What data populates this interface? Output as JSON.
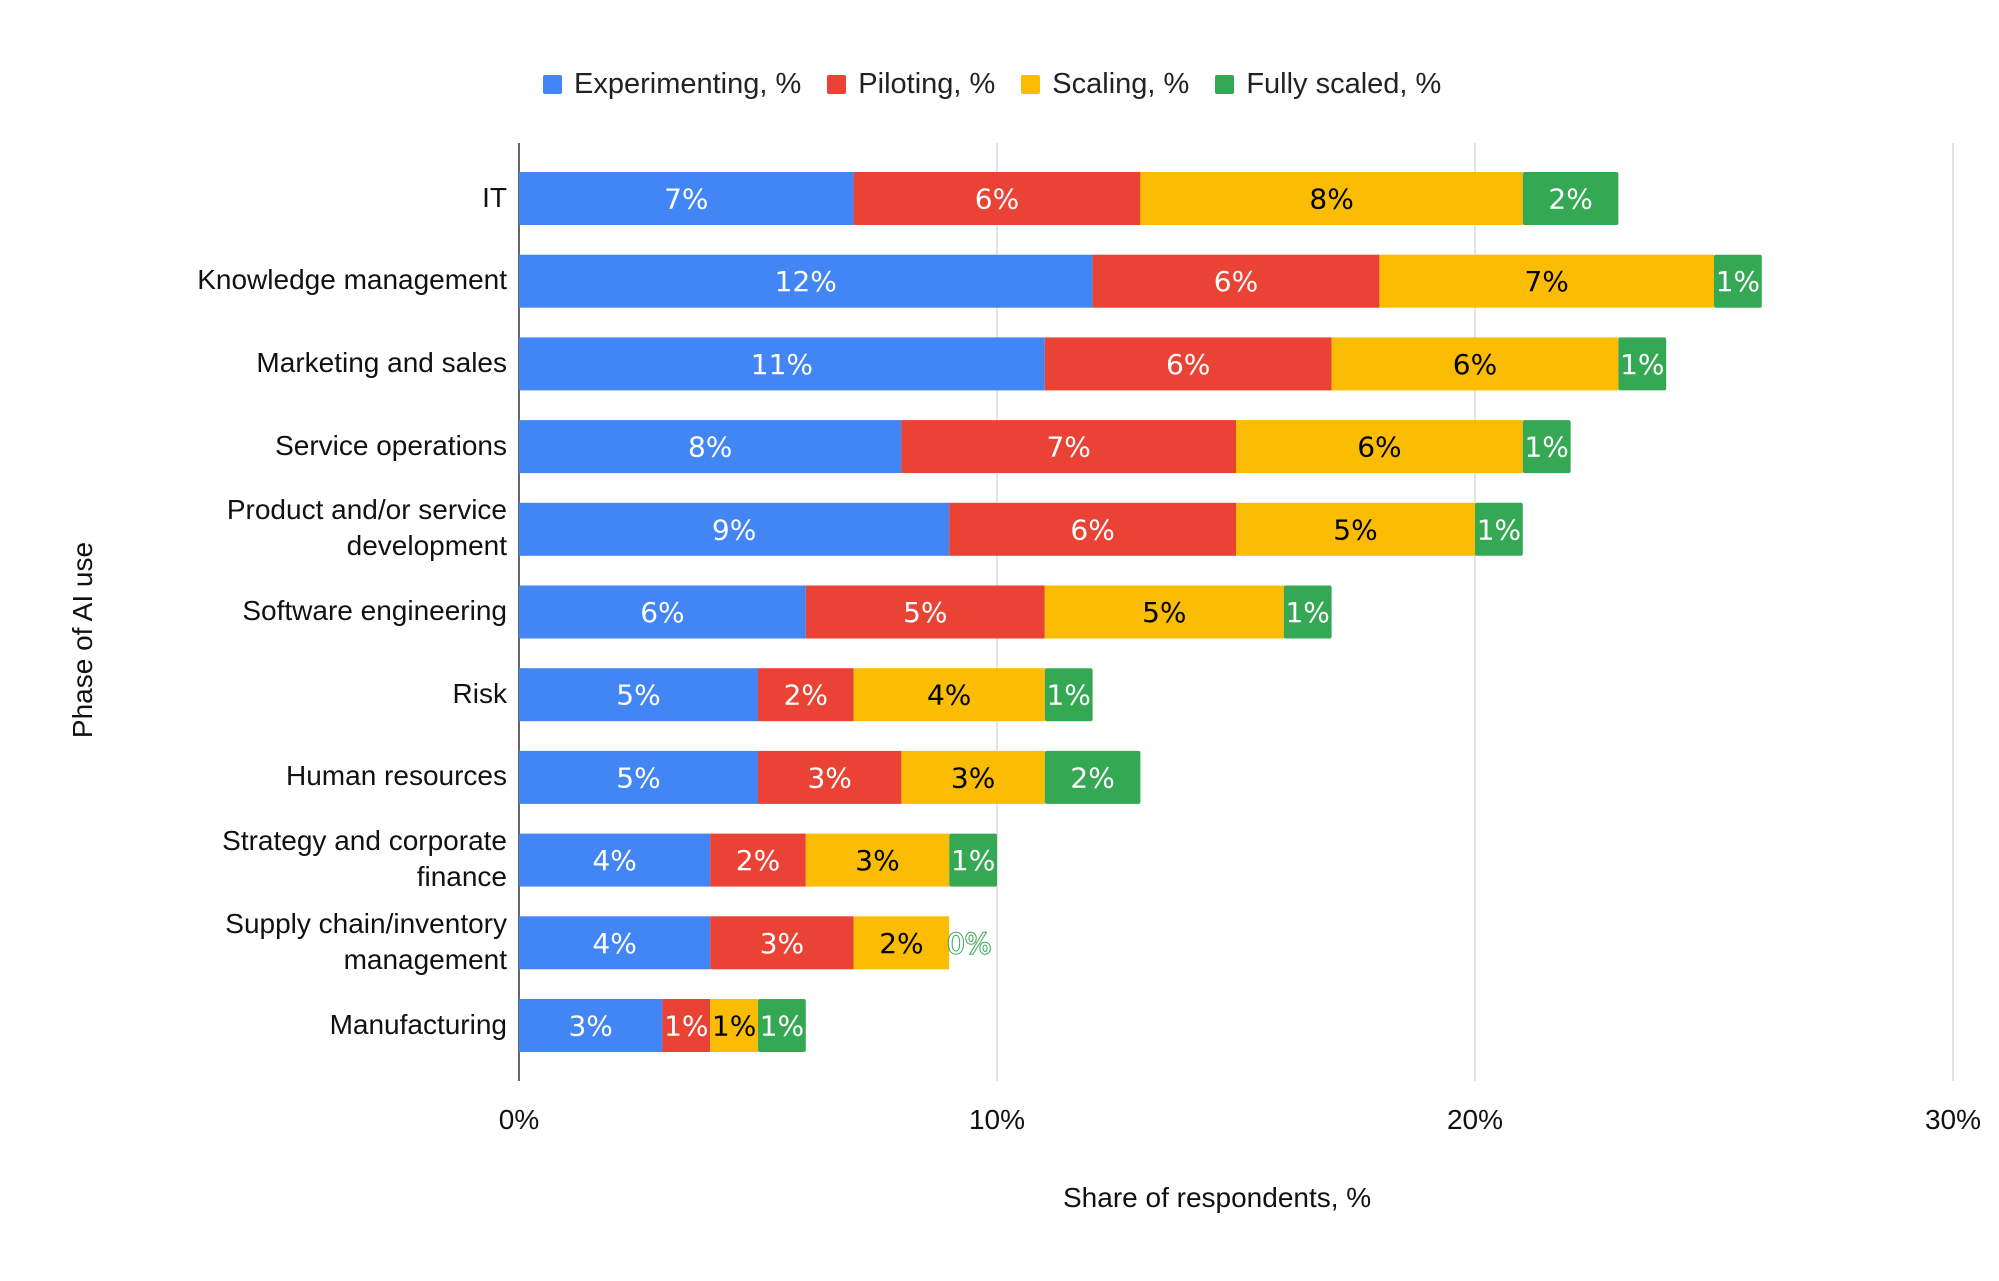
{
  "chart_data": {
    "type": "bar",
    "orientation": "horizontal",
    "stacked": true,
    "title": "",
    "xlabel": "Share of respondents, %",
    "ylabel": "Phase of AI use",
    "xlim": [
      0,
      30
    ],
    "x_ticks": [
      0,
      10,
      20,
      30
    ],
    "x_tick_labels": [
      "0%",
      "10%",
      "20%",
      "30%"
    ],
    "grid": true,
    "legend_position": "top",
    "categories": [
      "IT",
      "Knowledge management",
      "Marketing and sales",
      "Service operations",
      "Product and/or service development",
      "Software engineering",
      "Risk",
      "Human resources",
      "Strategy and corporate finance",
      "Supply chain/inventory management",
      "Manufacturing"
    ],
    "category_lines": [
      [
        "IT"
      ],
      [
        "Knowledge management"
      ],
      [
        "Marketing and sales"
      ],
      [
        "Service operations"
      ],
      [
        "Product and/or service",
        "development"
      ],
      [
        "Software engineering"
      ],
      [
        "Risk"
      ],
      [
        "Human resources"
      ],
      [
        "Strategy and corporate",
        "finance"
      ],
      [
        "Supply chain/inventory",
        "management"
      ],
      [
        "Manufacturing"
      ]
    ],
    "series": [
      {
        "name": "Experimenting, %",
        "color": "#4285f4",
        "label_color": "#ffffff",
        "values": [
          7,
          12,
          11,
          8,
          9,
          6,
          5,
          5,
          4,
          4,
          3
        ]
      },
      {
        "name": "Piloting, %",
        "color": "#ea4335",
        "label_color": "#ffffff",
        "values": [
          6,
          6,
          6,
          7,
          6,
          5,
          2,
          3,
          2,
          3,
          1
        ]
      },
      {
        "name": "Scaling, %",
        "color": "#fbbc04",
        "label_color": "#000000",
        "values": [
          8,
          7,
          6,
          6,
          5,
          5,
          4,
          3,
          3,
          2,
          1
        ]
      },
      {
        "name": "Fully scaled, %",
        "color": "#34a853",
        "label_color": "#ffffff",
        "values": [
          2,
          1,
          1,
          1,
          1,
          1,
          1,
          2,
          1,
          0,
          1
        ]
      }
    ],
    "value_label_suffix": "%"
  }
}
